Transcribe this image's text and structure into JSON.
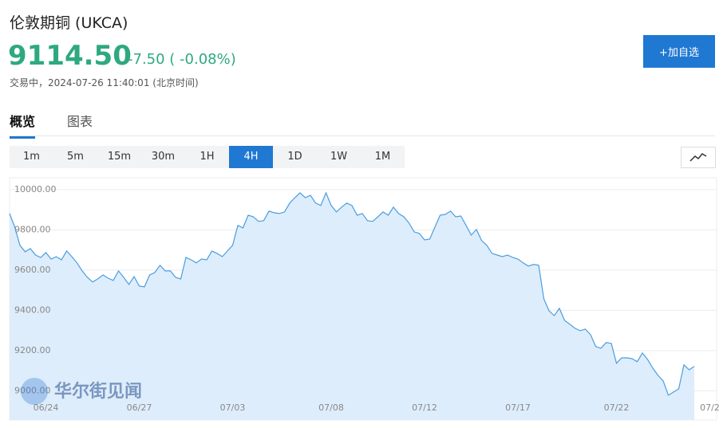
{
  "header": {
    "title": "伦敦期铜 (UKCA)",
    "price": "9114.50",
    "change": "-7.50 ( -0.08%)",
    "status": "交易中，2024-07-26 11:40:01 (北京时间)",
    "button": "+加自选"
  },
  "tabs": [
    "概览",
    "图表"
  ],
  "timeframes": [
    "1m",
    "5m",
    "15m",
    "30m",
    "1H",
    "4H",
    "1D",
    "1W",
    "1M"
  ],
  "watermark": "华尔街见闻",
  "chart_data": {
    "type": "area",
    "color": "#4a9de0",
    "values": [
      9881,
      9814,
      9723,
      9691,
      9707,
      9675,
      9663,
      9687,
      9655,
      9667,
      9651,
      9695,
      9667,
      9636,
      9596,
      9564,
      9541,
      9556,
      9576,
      9560,
      9549,
      9596,
      9564,
      9529,
      9568,
      9521,
      9517,
      9576,
      9588,
      9624,
      9596,
      9596,
      9564,
      9556,
      9663,
      9651,
      9636,
      9655,
      9651,
      9695,
      9683,
      9667,
      9695,
      9723,
      9822,
      9810,
      9873,
      9865,
      9842,
      9846,
      9893,
      9885,
      9881,
      9889,
      9933,
      9960,
      9984,
      9960,
      9972,
      9933,
      9921,
      9984,
      9921,
      9889,
      9913,
      9933,
      9921,
      9873,
      9881,
      9846,
      9842,
      9865,
      9889,
      9873,
      9913,
      9881,
      9865,
      9834,
      9790,
      9782,
      9750,
      9754,
      9814,
      9873,
      9877,
      9893,
      9865,
      9869,
      9822,
      9774,
      9802,
      9747,
      9723,
      9683,
      9675,
      9667,
      9675,
      9663,
      9655,
      9636,
      9620,
      9628,
      9624,
      9457,
      9398,
      9374,
      9410,
      9350,
      9331,
      9311,
      9299,
      9307,
      9279,
      9220,
      9212,
      9240,
      9236,
      9137,
      9164,
      9164,
      9160,
      9145,
      9188,
      9156,
      9113,
      9077,
      9050,
      8978,
      8994,
      9010,
      9129,
      9105,
      9121
    ],
    "xlim": [
      0,
      136
    ],
    "xticks": [
      {
        "value": 7,
        "label": "06/24"
      },
      {
        "value": 25,
        "label": "06/27"
      },
      {
        "value": 43,
        "label": "07/03"
      },
      {
        "value": 62,
        "label": "07/08"
      },
      {
        "value": 80,
        "label": "07/12"
      },
      {
        "value": 98,
        "label": "07/17"
      },
      {
        "value": 117,
        "label": "07/22"
      },
      {
        "value": 135,
        "label": "07/2"
      }
    ],
    "ylim": [
      8855,
      10059
    ],
    "yticks": [
      {
        "value": 9000,
        "label": "9000.00"
      },
      {
        "value": 9200,
        "label": "9200.00"
      },
      {
        "value": 9400,
        "label": "9400.00"
      },
      {
        "value": 9600,
        "label": "9600.00"
      },
      {
        "value": 9800,
        "label": "9800.00"
      },
      {
        "value": 10000,
        "label": "10000.00"
      }
    ],
    "grid": true
  }
}
